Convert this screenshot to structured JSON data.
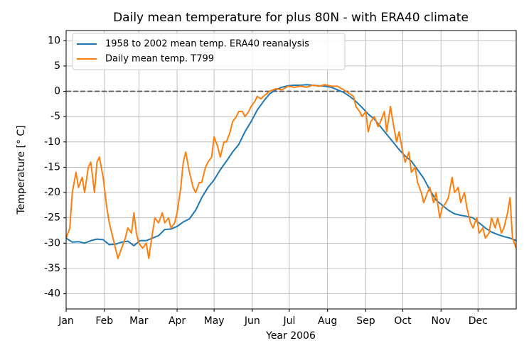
{
  "chart_data": {
    "type": "line",
    "title": "Daily mean temperature for plus 80N - with ERA40 climate",
    "x_label": "Year 2006",
    "y_label": "Temperature [$^\\circ$C]",
    "xlim": [
      0,
      365
    ],
    "xticks": [
      {
        "value": 0,
        "label": "Jan"
      },
      {
        "value": 31,
        "label": "Feb"
      },
      {
        "value": 59,
        "label": "Mar"
      },
      {
        "value": 90,
        "label": "Apr"
      },
      {
        "value": 120,
        "label": "May"
      },
      {
        "value": 151,
        "label": "Jun"
      },
      {
        "value": 181,
        "label": "Jul"
      },
      {
        "value": 212,
        "label": "Aug"
      },
      {
        "value": 243,
        "label": "Sep"
      },
      {
        "value": 273,
        "label": "Oct"
      },
      {
        "value": 304,
        "label": "Nov"
      },
      {
        "value": 334,
        "label": "Dec"
      }
    ],
    "ylim": [
      -43,
      12
    ],
    "yticks": [
      -40,
      -35,
      -30,
      -25,
      -20,
      -15,
      -10,
      -5,
      0,
      5,
      10
    ],
    "grid": true,
    "hline": 0,
    "legend": "upper left",
    "series": [
      {
        "name": "1958 to 2002 mean temp. ERA40 reanalysis",
        "color": "#1f77b4",
        "x": [
          0,
          5,
          10,
          15,
          20,
          25,
          30,
          35,
          40,
          45,
          50,
          55,
          60,
          65,
          70,
          75,
          80,
          85,
          90,
          95,
          100,
          105,
          110,
          115,
          120,
          125,
          130,
          135,
          140,
          145,
          150,
          155,
          160,
          165,
          170,
          175,
          180,
          185,
          190,
          195,
          200,
          205,
          210,
          215,
          220,
          225,
          230,
          235,
          240,
          245,
          250,
          255,
          260,
          265,
          270,
          275,
          280,
          285,
          290,
          295,
          300,
          305,
          310,
          315,
          320,
          325,
          330,
          335,
          340,
          345,
          350,
          355,
          360,
          365
        ],
        "values": [
          -29,
          -29.8,
          -29.7,
          -30,
          -29.5,
          -29.2,
          -29.3,
          -30.3,
          -30.2,
          -29.8,
          -29.6,
          -30.5,
          -29.5,
          -29.5,
          -29,
          -28.5,
          -27.3,
          -27.2,
          -26.7,
          -25.8,
          -25.2,
          -23.5,
          -21,
          -19,
          -17.5,
          -15.5,
          -13.8,
          -12,
          -10.5,
          -8,
          -6,
          -3.7,
          -2,
          -0.5,
          0.3,
          0.8,
          1.1,
          1.2,
          1.2,
          1.3,
          1.2,
          1.1,
          1,
          0.8,
          0.3,
          -0.2,
          -1,
          -2,
          -3.2,
          -4.5,
          -5.5,
          -7,
          -8.5,
          -10,
          -11.5,
          -12.8,
          -13.8,
          -15.5,
          -17.2,
          -19.5,
          -21.5,
          -22.5,
          -23.5,
          -24.2,
          -24.5,
          -24.7,
          -25,
          -26,
          -27,
          -27.8,
          -28.3,
          -28.7,
          -29,
          -29.5
        ]
      },
      {
        "name": "Daily mean temp. T799",
        "color": "#ff7f0e",
        "x": [
          0,
          3,
          5,
          8,
          10,
          13,
          15,
          18,
          20,
          23,
          25,
          27,
          30,
          33,
          35,
          38,
          40,
          42,
          45,
          48,
          50,
          53,
          55,
          57,
          59,
          62,
          65,
          67,
          70,
          72,
          75,
          78,
          80,
          83,
          85,
          88,
          90,
          93,
          95,
          97,
          100,
          103,
          105,
          108,
          110,
          113,
          115,
          118,
          120,
          123,
          125,
          128,
          130,
          133,
          135,
          138,
          140,
          143,
          145,
          148,
          150,
          153,
          155,
          158,
          160,
          165,
          170,
          175,
          180,
          185,
          190,
          195,
          200,
          205,
          210,
          215,
          220,
          225,
          230,
          233,
          235,
          238,
          240,
          243,
          245,
          247,
          250,
          253,
          255,
          258,
          260,
          263,
          265,
          268,
          270,
          273,
          275,
          278,
          280,
          283,
          285,
          288,
          290,
          293,
          295,
          298,
          300,
          303,
          305,
          308,
          310,
          313,
          315,
          318,
          320,
          323,
          325,
          328,
          330,
          333,
          335,
          338,
          340,
          343,
          345,
          348,
          350,
          353,
          355,
          358,
          360,
          362,
          365
        ],
        "values": [
          -29,
          -27,
          -20,
          -16,
          -19,
          -17,
          -20,
          -15,
          -14,
          -20,
          -14,
          -13,
          -17,
          -23,
          -26,
          -29,
          -31,
          -33,
          -31,
          -29,
          -27,
          -28,
          -24,
          -28,
          -30,
          -31,
          -30,
          -33,
          -28,
          -25,
          -26,
          -24,
          -26,
          -25,
          -27,
          -26,
          -24,
          -19,
          -14,
          -12,
          -16,
          -19,
          -20,
          -18,
          -18,
          -15,
          -14,
          -13,
          -9,
          -11,
          -13,
          -10,
          -10,
          -8,
          -6,
          -5,
          -4,
          -4,
          -5,
          -4,
          -3,
          -2,
          -1,
          -1.5,
          -1,
          0,
          0.5,
          0.3,
          1,
          0.8,
          1,
          0.8,
          1.2,
          1,
          1.3,
          1,
          1,
          0.3,
          -0.5,
          -1,
          -3,
          -4,
          -5,
          -4,
          -8,
          -6,
          -5,
          -7,
          -6,
          -4,
          -8,
          -3,
          -6,
          -10,
          -8,
          -12,
          -14,
          -12,
          -16,
          -15,
          -18,
          -20,
          -22,
          -20,
          -19,
          -22,
          -20,
          -25,
          -23,
          -22,
          -21,
          -17,
          -20,
          -19,
          -22,
          -20,
          -23,
          -26,
          -27,
          -25,
          -28,
          -27,
          -29,
          -28,
          -25,
          -27,
          -25,
          -28,
          -27,
          -24,
          -21,
          -29,
          -31
        ]
      }
    ]
  }
}
